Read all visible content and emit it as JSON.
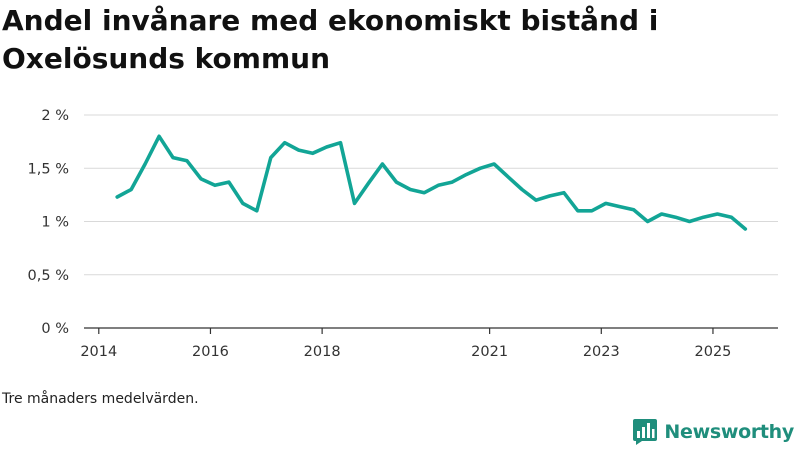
{
  "colors": {
    "line": "#12a596",
    "brand": "#1f8e7c",
    "grid": "#d9d9d9",
    "axis": "#333333"
  },
  "chart_data": {
    "type": "line",
    "title": "Andel invånare med ekonomiskt bistånd i Oxelösunds kommun",
    "xlabel": "",
    "ylabel": "",
    "ylim": [
      0,
      2
    ],
    "xlim": [
      2014,
      2025.6
    ],
    "yticks": [
      {
        "value": 0,
        "label": "0 %"
      },
      {
        "value": 0.5,
        "label": "0,5 %"
      },
      {
        "value": 1,
        "label": "1 %"
      },
      {
        "value": 1.5,
        "label": "1,5 %"
      },
      {
        "value": 2,
        "label": "2 %"
      }
    ],
    "xticks": [
      {
        "value": 2014,
        "label": "2014"
      },
      {
        "value": 2016,
        "label": "2016"
      },
      {
        "value": 2018,
        "label": "2018"
      },
      {
        "value": 2021,
        "label": "2021"
      },
      {
        "value": 2023,
        "label": "2023"
      },
      {
        "value": 2025,
        "label": "2025"
      }
    ],
    "grid": true,
    "series": [
      {
        "name": "Andel invånare med ekonomiskt bistånd",
        "x": [
          2014.33,
          2014.58,
          2014.83,
          2015.08,
          2015.33,
          2015.58,
          2015.83,
          2016.08,
          2016.33,
          2016.58,
          2016.83,
          2017.08,
          2017.33,
          2017.58,
          2017.83,
          2018.08,
          2018.33,
          2018.58,
          2018.83,
          2019.08,
          2019.33,
          2019.58,
          2019.83,
          2020.08,
          2020.33,
          2020.58,
          2020.83,
          2021.08,
          2021.33,
          2021.58,
          2021.83,
          2022.08,
          2022.33,
          2022.58,
          2022.83,
          2023.08,
          2023.33,
          2023.58,
          2023.83,
          2024.08,
          2024.33,
          2024.58,
          2024.83,
          2025.08,
          2025.33,
          2025.58
        ],
        "y": [
          1.23,
          1.3,
          1.54,
          1.8,
          1.6,
          1.57,
          1.4,
          1.34,
          1.37,
          1.17,
          1.1,
          1.6,
          1.74,
          1.67,
          1.64,
          1.7,
          1.74,
          1.17,
          1.36,
          1.54,
          1.37,
          1.3,
          1.27,
          1.34,
          1.37,
          1.44,
          1.5,
          1.54,
          1.42,
          1.3,
          1.2,
          1.24,
          1.27,
          1.1,
          1.1,
          1.17,
          1.14,
          1.11,
          1.0,
          1.07,
          1.04,
          1.0,
          1.04,
          1.07,
          1.04,
          0.93
        ]
      }
    ]
  },
  "note": "Tre månaders medelvärden.",
  "brand": {
    "name": "Newsworthy",
    "icon": "newsworthy-logo-icon"
  }
}
